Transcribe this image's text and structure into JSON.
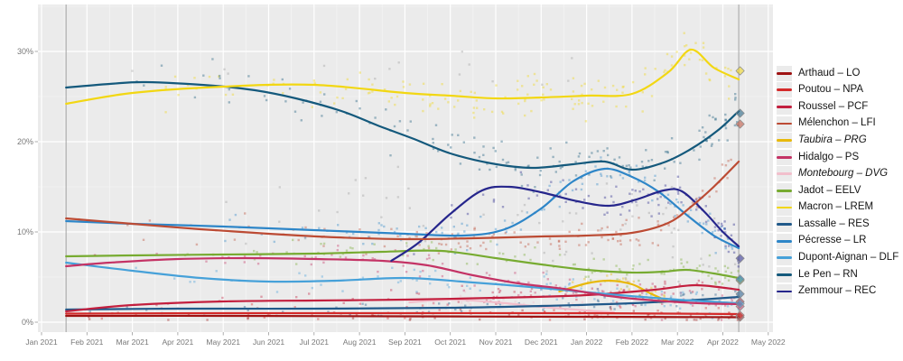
{
  "style": {
    "plot_bg": "#ebebeb",
    "grid_major": "#ffffff",
    "grid_minor": "#f4f4f4",
    "axis_text": "#787878",
    "annotation_line": "#a3a3a3",
    "scatter_opacity": 0.38,
    "line_width": 2.2
  },
  "annotations": {
    "poll_period_start_m": 0.54,
    "election_day_m": 15.35
  },
  "chart_data": {
    "type": "line",
    "title": "",
    "xlabel": "",
    "ylabel": "",
    "x_ticks": [
      "Jan 2021",
      "Feb 2021",
      "Mar 2021",
      "Apr 2021",
      "May 2021",
      "Jun 2021",
      "Jul 2021",
      "Aug 2021",
      "Sep 2021",
      "Oct 2021",
      "Nov 2021",
      "Dec 2021",
      "Jan 2022",
      "Feb 2022",
      "Mar 2022",
      "Apr 2022",
      "May 2022"
    ],
    "y_ticks": [
      "0%",
      "10%",
      "20%",
      "30%"
    ],
    "y_tick_values": [
      0,
      10,
      20,
      30
    ],
    "ylim": [
      -1.1,
      35.2
    ],
    "grid": true,
    "legend_position": "right",
    "series": [
      {
        "name": "Arthaud",
        "party": "LO",
        "color": "#9e1212",
        "italic": false,
        "result": 0.56,
        "scatter_n": 55,
        "scatter_sd": 0.35,
        "points": [
          [
            0.54,
            0.7
          ],
          [
            4,
            0.7
          ],
          [
            8,
            0.65
          ],
          [
            12,
            0.6
          ],
          [
            15.35,
            0.55
          ]
        ]
      },
      {
        "name": "Poutou",
        "party": "NPA",
        "color": "#d42a2a",
        "italic": false,
        "result": 0.77,
        "scatter_n": 55,
        "scatter_sd": 0.4,
        "points": [
          [
            0.54,
            0.95
          ],
          [
            4,
            1.0
          ],
          [
            8,
            1.0
          ],
          [
            12,
            1.0
          ],
          [
            15.35,
            0.9
          ]
        ]
      },
      {
        "name": "Roussel",
        "party": "PCF",
        "color": "#c31f3e",
        "italic": false,
        "result": 2.28,
        "scatter_n": 80,
        "scatter_sd": 0.55,
        "points": [
          [
            0.54,
            1.2
          ],
          [
            2,
            1.9
          ],
          [
            4,
            2.3
          ],
          [
            6,
            2.4
          ],
          [
            8,
            2.5
          ],
          [
            10,
            2.7
          ],
          [
            12,
            3.0
          ],
          [
            13.5,
            3.6
          ],
          [
            14.4,
            4.1
          ],
          [
            15.35,
            3.6
          ]
        ]
      },
      {
        "name": "Mélenchon",
        "party": "LFI",
        "color": "#bc4b34",
        "italic": false,
        "result": 21.95,
        "scatter_n": 115,
        "scatter_sd": 0.9,
        "points": [
          [
            0.54,
            11.5
          ],
          [
            2,
            10.9
          ],
          [
            3.5,
            10.3
          ],
          [
            5,
            9.8
          ],
          [
            6.5,
            9.4
          ],
          [
            8,
            9.2
          ],
          [
            9.5,
            9.3
          ],
          [
            11,
            9.5
          ],
          [
            12,
            9.6
          ],
          [
            13,
            9.9
          ],
          [
            13.8,
            11.0
          ],
          [
            14.3,
            12.8
          ],
          [
            14.8,
            15.0
          ],
          [
            15.35,
            17.8
          ]
        ]
      },
      {
        "name": "Taubira",
        "party": "PRG",
        "color": "#e8b90c",
        "italic": true,
        "result": null,
        "scatter_n": 28,
        "scatter_sd": 0.5,
        "points": [
          [
            11.4,
            3.4
          ],
          [
            12,
            4.3
          ],
          [
            12.5,
            4.6
          ],
          [
            13,
            4.2
          ],
          [
            13.4,
            3.2
          ],
          [
            13.8,
            2.3
          ]
        ]
      },
      {
        "name": "Hidalgo",
        "party": "PS",
        "color": "#c43365",
        "italic": false,
        "result": 1.75,
        "scatter_n": 95,
        "scatter_sd": 0.8,
        "points": [
          [
            0.54,
            6.2
          ],
          [
            1.5,
            6.6
          ],
          [
            3,
            7.0
          ],
          [
            4.5,
            7.1
          ],
          [
            6,
            7.0
          ],
          [
            7.5,
            6.8
          ],
          [
            8.5,
            6.3
          ],
          [
            9.5,
            5.2
          ],
          [
            10.5,
            4.3
          ],
          [
            11.5,
            3.7
          ],
          [
            12.5,
            2.9
          ],
          [
            13.5,
            2.4
          ],
          [
            14.5,
            2.1
          ],
          [
            15.35,
            2.0
          ]
        ]
      },
      {
        "name": "Montebourg",
        "party": "DVG",
        "color": "#f2bfcc",
        "italic": true,
        "result": null,
        "scatter_n": 22,
        "scatter_sd": 0.45,
        "points": [
          [
            8.1,
            2.2
          ],
          [
            9,
            2.5
          ],
          [
            10,
            2.2
          ],
          [
            11,
            1.7
          ],
          [
            12,
            1.3
          ],
          [
            12.6,
            1.1
          ]
        ]
      },
      {
        "name": "Jadot",
        "party": "EELV",
        "color": "#77ab31",
        "italic": false,
        "result": 4.63,
        "scatter_n": 95,
        "scatter_sd": 0.8,
        "points": [
          [
            0.54,
            7.3
          ],
          [
            2,
            7.4
          ],
          [
            4,
            7.5
          ],
          [
            6,
            7.6
          ],
          [
            7.5,
            7.8
          ],
          [
            8.8,
            7.9
          ],
          [
            10,
            7.1
          ],
          [
            11,
            6.4
          ],
          [
            12,
            5.8
          ],
          [
            13,
            5.5
          ],
          [
            13.7,
            5.6
          ],
          [
            14.2,
            5.8
          ],
          [
            14.8,
            5.4
          ],
          [
            15.35,
            4.9
          ]
        ]
      },
      {
        "name": "Macron",
        "party": "LREM",
        "color": "#f2d713",
        "italic": false,
        "result": 27.85,
        "scatter_n": 150,
        "scatter_sd": 1.2,
        "points": [
          [
            0.54,
            24.2
          ],
          [
            2,
            25.4
          ],
          [
            4,
            26.1
          ],
          [
            6,
            26.3
          ],
          [
            8,
            25.4
          ],
          [
            9,
            25.1
          ],
          [
            10,
            24.8
          ],
          [
            11,
            24.9
          ],
          [
            12,
            25.1
          ],
          [
            13,
            25.3
          ],
          [
            13.8,
            27.7
          ],
          [
            14.3,
            30.2
          ],
          [
            14.8,
            28.2
          ],
          [
            15.35,
            26.9
          ]
        ]
      },
      {
        "name": "Lassalle",
        "party": "RES",
        "color": "#20598a",
        "italic": false,
        "result": 3.13,
        "scatter_n": 60,
        "scatter_sd": 0.5,
        "points": [
          [
            0.54,
            1.4
          ],
          [
            3,
            1.5
          ],
          [
            6,
            1.5
          ],
          [
            9,
            1.6
          ],
          [
            11,
            1.8
          ],
          [
            13,
            2.1
          ],
          [
            14.5,
            2.5
          ],
          [
            15.35,
            2.8
          ]
        ]
      },
      {
        "name": "Pécresse",
        "party": "LR",
        "color": "#2e86c8",
        "italic": false,
        "result": 4.78,
        "scatter_n": 115,
        "scatter_sd": 1.0,
        "points": [
          [
            0.54,
            11.2
          ],
          [
            2,
            10.9
          ],
          [
            4,
            10.6
          ],
          [
            6,
            10.2
          ],
          [
            8,
            9.8
          ],
          [
            9.3,
            9.6
          ],
          [
            10.2,
            10.3
          ],
          [
            11,
            12.6
          ],
          [
            11.7,
            15.6
          ],
          [
            12.4,
            17.0
          ],
          [
            13,
            16.1
          ],
          [
            13.6,
            14.4
          ],
          [
            14.2,
            11.9
          ],
          [
            14.8,
            9.6
          ],
          [
            15.35,
            8.2
          ]
        ]
      },
      {
        "name": "Dupont-Aignan",
        "party": "DLF",
        "color": "#46a1d9",
        "italic": false,
        "result": 2.06,
        "scatter_n": 85,
        "scatter_sd": 0.7,
        "points": [
          [
            0.54,
            6.6
          ],
          [
            2,
            5.7
          ],
          [
            3.5,
            4.9
          ],
          [
            5,
            4.5
          ],
          [
            6.5,
            4.6
          ],
          [
            8,
            4.9
          ],
          [
            9.5,
            4.4
          ],
          [
            11,
            3.8
          ],
          [
            12.5,
            3.1
          ],
          [
            14,
            2.5
          ],
          [
            15.35,
            2.1
          ]
        ]
      },
      {
        "name": "Le Pen",
        "party": "RN",
        "color": "#14597c",
        "italic": false,
        "result": 23.15,
        "scatter_n": 150,
        "scatter_sd": 1.2,
        "points": [
          [
            0.54,
            26.0
          ],
          [
            1.5,
            26.4
          ],
          [
            2.3,
            26.6
          ],
          [
            3.8,
            26.2
          ],
          [
            4.7,
            25.7
          ],
          [
            5.6,
            24.8
          ],
          [
            6.6,
            23.4
          ],
          [
            7.4,
            21.8
          ],
          [
            8.2,
            20.3
          ],
          [
            9,
            18.7
          ],
          [
            9.9,
            17.6
          ],
          [
            10.8,
            17.1
          ],
          [
            11.7,
            17.5
          ],
          [
            12.4,
            17.8
          ],
          [
            13,
            16.9
          ],
          [
            13.7,
            17.7
          ],
          [
            14.3,
            19.2
          ],
          [
            14.9,
            21.3
          ],
          [
            15.35,
            23.4
          ]
        ]
      },
      {
        "name": "Zemmour",
        "party": "REC",
        "color": "#26268c",
        "italic": false,
        "result": 7.07,
        "scatter_n": 95,
        "scatter_sd": 1.0,
        "points": [
          [
            7.7,
            6.8
          ],
          [
            8.3,
            8.8
          ],
          [
            9.0,
            12.0
          ],
          [
            9.7,
            14.6
          ],
          [
            10.3,
            15.0
          ],
          [
            11.0,
            14.4
          ],
          [
            11.8,
            13.4
          ],
          [
            12.5,
            12.9
          ],
          [
            13.1,
            13.6
          ],
          [
            13.7,
            14.6
          ],
          [
            14.1,
            14.5
          ],
          [
            14.6,
            12.2
          ],
          [
            15.0,
            10.0
          ],
          [
            15.35,
            8.4
          ]
        ]
      }
    ],
    "background_scatter": [
      {
        "name": "other-hypotheses-mid",
        "color": "#8f8f8f",
        "n": 70,
        "m_range": [
          3,
          15.3
        ],
        "sd": 3.0,
        "min": 0.5,
        "max": 17.5,
        "trend": [
          [
            3,
            13
          ],
          [
            9,
            11.5
          ],
          [
            15.3,
            9.5
          ]
        ]
      },
      {
        "name": "other-hypotheses-high",
        "color": "#8f8f8f",
        "n": 14,
        "m_range": [
          1,
          12
        ],
        "sd": 1.3,
        "min": 24,
        "max": 30,
        "trend": [
          [
            1,
            27.5
          ],
          [
            12,
            27.5
          ]
        ]
      }
    ]
  },
  "legend": {
    "items": [
      {
        "label": "Arthaud – LO",
        "color": "#9e1212",
        "italic": false
      },
      {
        "label": "Poutou – NPA",
        "color": "#d42a2a",
        "italic": false
      },
      {
        "label": "Roussel – PCF",
        "color": "#c31f3e",
        "italic": false
      },
      {
        "label": "Mélenchon – LFI",
        "color": "#bc4b34",
        "italic": false
      },
      {
        "label": "Taubira – PRG",
        "color": "#e8b90c",
        "italic": true
      },
      {
        "label": "Hidalgo – PS",
        "color": "#c43365",
        "italic": false
      },
      {
        "label": "Montebourg – DVG",
        "color": "#f2bfcc",
        "italic": true
      },
      {
        "label": "Jadot – EELV",
        "color": "#77ab31",
        "italic": false
      },
      {
        "label": "Macron – LREM",
        "color": "#f2d713",
        "italic": false
      },
      {
        "label": "Lassalle – RES",
        "color": "#20598a",
        "italic": false
      },
      {
        "label": "Pécresse – LR",
        "color": "#2e86c8",
        "italic": false
      },
      {
        "label": "Dupont-Aignan – DLF",
        "color": "#46a1d9",
        "italic": false
      },
      {
        "label": "Le Pen – RN",
        "color": "#14597c",
        "italic": false
      },
      {
        "label": "Zemmour – REC",
        "color": "#26268c",
        "italic": false
      }
    ]
  }
}
